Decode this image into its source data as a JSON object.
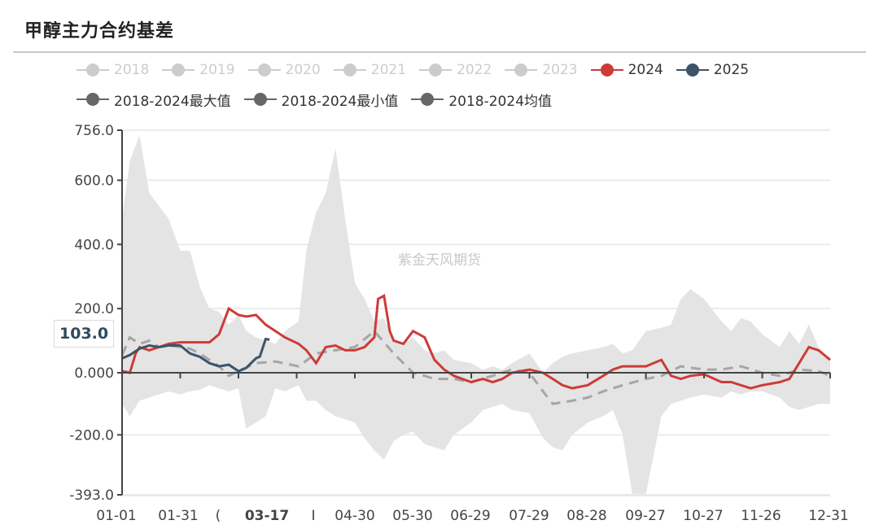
{
  "title": "甲醇主力合约基差",
  "watermark": "紫金天风期货",
  "colors": {
    "y2024": "#cd3b38",
    "y2025": "#3c5468",
    "band": "#e4e4e4",
    "mean": "#a6a6a6",
    "disabled": "#cccccc",
    "stat": "#666666"
  },
  "legend": {
    "row1": [
      {
        "label": "2018",
        "state": "disabled"
      },
      {
        "label": "2019",
        "state": "disabled"
      },
      {
        "label": "2020",
        "state": "disabled"
      },
      {
        "label": "2021",
        "state": "disabled"
      },
      {
        "label": "2022",
        "state": "disabled"
      },
      {
        "label": "2023",
        "state": "disabled"
      },
      {
        "label": "2024",
        "state": "active"
      },
      {
        "label": "2025",
        "state": "active"
      }
    ],
    "row2": [
      {
        "label": "2018-2024最大值",
        "state": "active"
      },
      {
        "label": "2018-2024最小值",
        "state": "active"
      },
      {
        "label": "2018-2024均值",
        "state": "active"
      }
    ]
  },
  "axis_pointer": {
    "y_value_label": "103.0",
    "x_value_label": "03-17"
  },
  "chart_data": {
    "type": "line",
    "title": "甲醇主力合约基差",
    "xlabel": "",
    "ylabel": "",
    "ylim": [
      -393.0,
      756.0
    ],
    "y_ticks": [
      "756.0",
      "600.0",
      "400.0",
      "200.0",
      "0.000",
      "-200.0",
      "-393.0"
    ],
    "x_ticks": [
      "01-01",
      "01-31",
      "03-01",
      "03-17",
      "04-01",
      "04-30",
      "05-30",
      "06-29",
      "07-29",
      "08-28",
      "09-27",
      "10-27",
      "11-26",
      "12-31"
    ],
    "grid": true,
    "legend_position": "top",
    "band": {
      "name": "2018-2024最大值 / 最小值 range",
      "x": [
        "01-01",
        "01-05",
        "01-10",
        "01-15",
        "01-20",
        "01-25",
        "01-31",
        "02-05",
        "02-10",
        "02-15",
        "02-20",
        "02-25",
        "03-01",
        "03-05",
        "03-10",
        "03-15",
        "03-20",
        "03-25",
        "04-01",
        "04-05",
        "04-10",
        "04-15",
        "04-20",
        "04-25",
        "04-30",
        "05-05",
        "05-10",
        "05-15",
        "05-20",
        "05-25",
        "05-30",
        "06-05",
        "06-10",
        "06-15",
        "06-20",
        "06-29",
        "07-05",
        "07-10",
        "07-15",
        "07-20",
        "07-29",
        "08-05",
        "08-10",
        "08-15",
        "08-20",
        "08-28",
        "09-05",
        "09-10",
        "09-15",
        "09-20",
        "09-27",
        "10-05",
        "10-10",
        "10-15",
        "10-20",
        "10-27",
        "11-05",
        "11-10",
        "11-15",
        "11-20",
        "11-26",
        "12-05",
        "12-10",
        "12-15",
        "12-20",
        "12-25",
        "12-31"
      ],
      "max": [
        480,
        660,
        740,
        560,
        520,
        480,
        380,
        380,
        270,
        200,
        190,
        150,
        180,
        130,
        110,
        100,
        90,
        130,
        160,
        380,
        500,
        560,
        700,
        480,
        280,
        230,
        160,
        170,
        100,
        90,
        110,
        70,
        60,
        70,
        40,
        30,
        10,
        20,
        10,
        30,
        60,
        0,
        30,
        50,
        60,
        70,
        80,
        90,
        60,
        70,
        130,
        140,
        150,
        230,
        260,
        230,
        160,
        130,
        170,
        160,
        120,
        80,
        130,
        90,
        150,
        80,
        40
      ],
      "min": [
        -100,
        -140,
        -90,
        -80,
        -70,
        -60,
        -70,
        -60,
        -55,
        -40,
        -50,
        -60,
        -50,
        -180,
        -160,
        -140,
        -50,
        -60,
        -40,
        -90,
        -90,
        -120,
        -140,
        -150,
        -160,
        -210,
        -250,
        -280,
        -220,
        -200,
        -190,
        -230,
        -240,
        -250,
        -200,
        -160,
        -120,
        -110,
        -100,
        -120,
        -130,
        -210,
        -240,
        -250,
        -200,
        -160,
        -140,
        -120,
        -200,
        -390,
        -390,
        -140,
        -100,
        -90,
        -80,
        -70,
        -80,
        -60,
        -70,
        -60,
        -60,
        -80,
        -110,
        -120,
        -110,
        -100,
        -100
      ]
    },
    "series": [
      {
        "name": "2024",
        "x": [
          "01-01",
          "01-05",
          "01-08",
          "01-10",
          "01-15",
          "01-20",
          "01-25",
          "01-31",
          "02-05",
          "02-10",
          "02-15",
          "02-20",
          "02-25",
          "03-01",
          "03-05",
          "03-10",
          "03-15",
          "03-20",
          "03-25",
          "04-01",
          "04-05",
          "04-10",
          "04-15",
          "04-20",
          "04-25",
          "04-30",
          "05-05",
          "05-10",
          "05-12",
          "05-15",
          "05-18",
          "05-20",
          "05-25",
          "05-30",
          "06-05",
          "06-10",
          "06-15",
          "06-20",
          "06-29",
          "07-05",
          "07-10",
          "07-15",
          "07-20",
          "07-29",
          "08-05",
          "08-10",
          "08-15",
          "08-20",
          "08-28",
          "09-05",
          "09-10",
          "09-15",
          "09-20",
          "09-27",
          "10-05",
          "10-10",
          "10-15",
          "10-20",
          "10-27",
          "11-05",
          "11-10",
          "11-15",
          "11-20",
          "11-26",
          "12-05",
          "12-10",
          "12-15",
          "12-20",
          "12-25",
          "12-31"
        ],
        "values": [
          5,
          0,
          60,
          80,
          70,
          80,
          90,
          95,
          95,
          95,
          95,
          120,
          200,
          180,
          175,
          180,
          150,
          130,
          110,
          90,
          70,
          30,
          80,
          85,
          70,
          70,
          80,
          110,
          230,
          240,
          130,
          100,
          90,
          130,
          110,
          40,
          10,
          -10,
          -30,
          -20,
          -30,
          -20,
          0,
          10,
          0,
          -20,
          -40,
          -50,
          -40,
          -10,
          10,
          20,
          20,
          20,
          40,
          -10,
          -20,
          -10,
          -5,
          -30,
          -30,
          -40,
          -50,
          -40,
          -30,
          -20,
          30,
          80,
          70,
          40
        ]
      },
      {
        "name": "2025",
        "x": [
          "01-01",
          "01-05",
          "01-10",
          "01-15",
          "01-20",
          "01-25",
          "01-31",
          "02-05",
          "02-10",
          "02-15",
          "02-20",
          "02-25",
          "03-01",
          "03-05",
          "03-10",
          "03-12",
          "03-15",
          "03-17"
        ],
        "values": [
          45,
          55,
          75,
          85,
          80,
          85,
          85,
          60,
          50,
          30,
          20,
          25,
          5,
          15,
          45,
          50,
          105,
          103
        ]
      },
      {
        "name": "2018-2024均值",
        "style": "dashed",
        "x": [
          "01-01",
          "01-05",
          "01-10",
          "01-15",
          "01-20",
          "01-25",
          "01-31",
          "02-05",
          "02-10",
          "02-15",
          "02-20",
          "02-25",
          "03-01",
          "03-10",
          "03-20",
          "04-01",
          "04-10",
          "04-20",
          "04-30",
          "05-10",
          "05-20",
          "05-30",
          "06-05",
          "06-10",
          "06-20",
          "06-29",
          "07-10",
          "07-20",
          "07-29",
          "08-05",
          "08-10",
          "08-20",
          "08-28",
          "09-05",
          "09-15",
          "09-27",
          "10-05",
          "10-15",
          "10-27",
          "11-05",
          "11-15",
          "11-26",
          "12-05",
          "12-15",
          "12-25",
          "12-31"
        ],
        "values": [
          55,
          110,
          90,
          100,
          80,
          85,
          80,
          75,
          60,
          40,
          20,
          -10,
          5,
          30,
          35,
          20,
          60,
          70,
          80,
          130,
          60,
          0,
          -10,
          -20,
          -20,
          -30,
          -10,
          10,
          0,
          -60,
          -100,
          -90,
          -80,
          -60,
          -40,
          -20,
          -10,
          20,
          10,
          10,
          20,
          0,
          -10,
          10,
          5,
          -10
        ]
      }
    ]
  }
}
